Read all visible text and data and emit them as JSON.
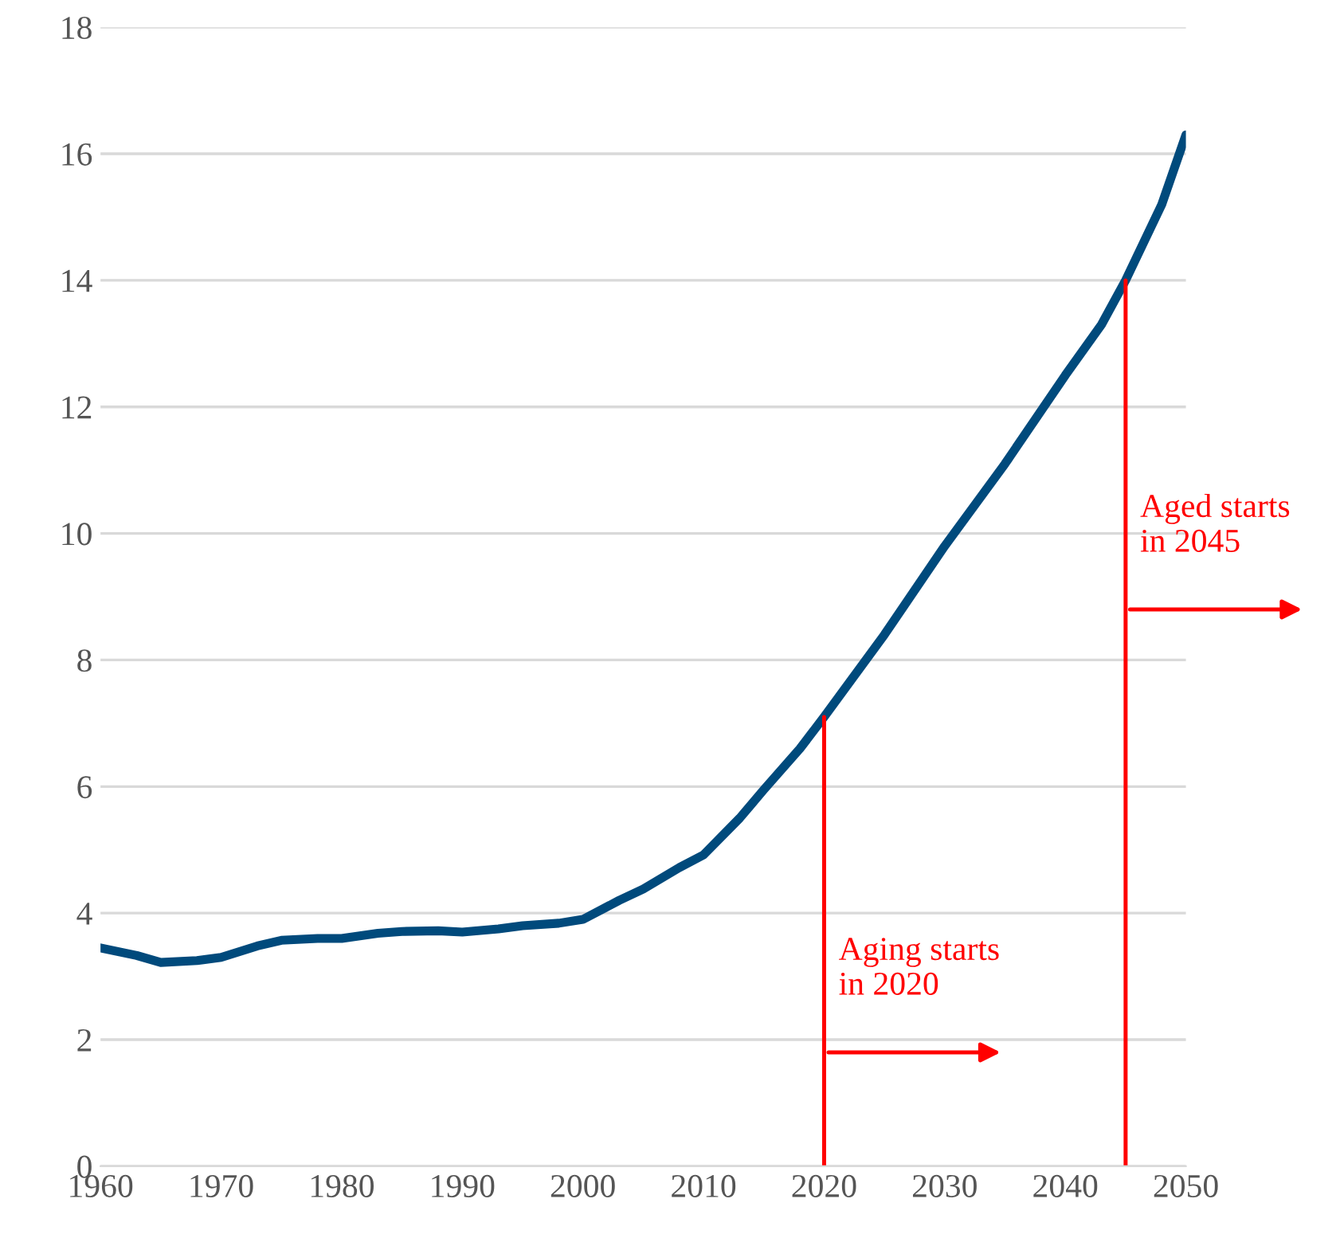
{
  "chart_data": {
    "type": "line",
    "x": [
      1960,
      1963,
      1965,
      1968,
      1970,
      1973,
      1975,
      1978,
      1980,
      1983,
      1985,
      1988,
      1990,
      1993,
      1995,
      1998,
      2000,
      2003,
      2005,
      2008,
      2010,
      2013,
      2015,
      2018,
      2020,
      2025,
      2030,
      2035,
      2040,
      2043,
      2045,
      2048,
      2050
    ],
    "series": [
      {
        "color": "#004a7c",
        "values": [
          3.45,
          3.33,
          3.22,
          3.25,
          3.3,
          3.48,
          3.57,
          3.6,
          3.6,
          3.68,
          3.71,
          3.72,
          3.7,
          3.75,
          3.8,
          3.84,
          3.9,
          4.2,
          4.38,
          4.72,
          4.92,
          5.5,
          5.95,
          6.6,
          7.1,
          8.4,
          9.8,
          11.1,
          12.5,
          13.3,
          14.0,
          15.2,
          16.3
        ]
      }
    ],
    "xlim": [
      1960,
      2050
    ],
    "xticks": [
      1960,
      1970,
      1980,
      1990,
      2000,
      2010,
      2020,
      2030,
      2040,
      2050
    ],
    "ylim": [
      0,
      18
    ],
    "yticks": [
      0,
      2,
      4,
      6,
      8,
      10,
      12,
      14,
      16,
      18
    ],
    "grid": "y",
    "marker": "none",
    "line_style": "solid",
    "ref_lines": [
      {
        "axis": "x",
        "value": 2020,
        "color": "#ff0000"
      },
      {
        "axis": "x",
        "value": 2045,
        "color": "#ff0000"
      }
    ],
    "annotations": [
      {
        "text": "Aging starts\nin 2020",
        "x": 2020,
        "y": 2.6
      },
      {
        "text": "Aged starts\nin 2045",
        "x": 2045,
        "y": 9.6
      }
    ]
  }
}
